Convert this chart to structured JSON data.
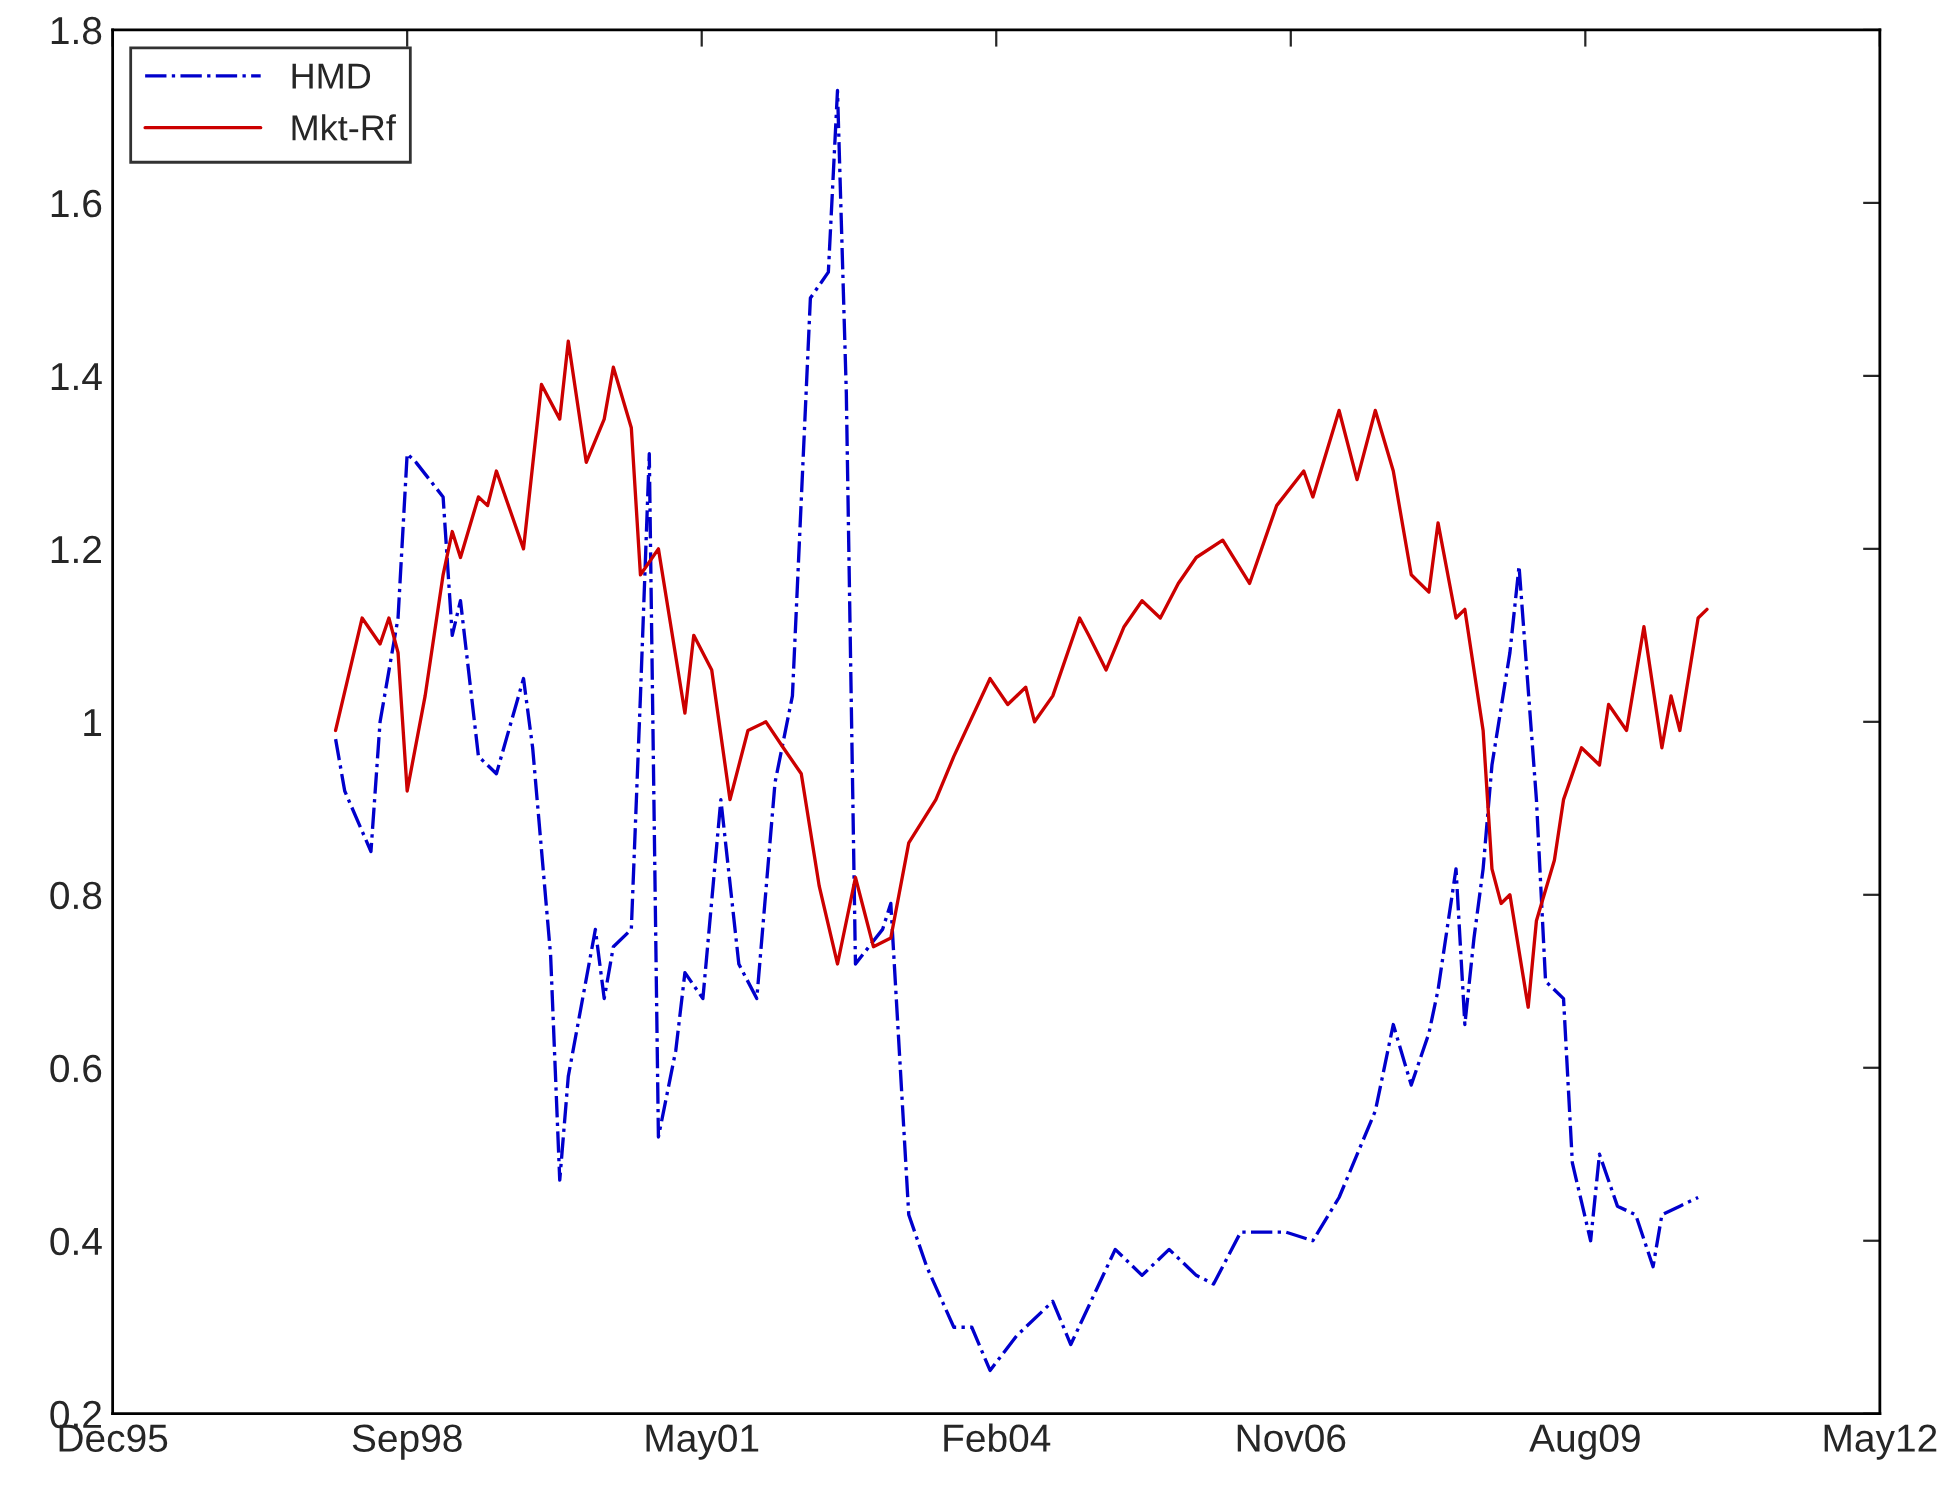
{
  "chart_data": {
    "type": "line",
    "xlim": [
      "1995-12-06",
      "2012-05-10"
    ],
    "xticks": [
      {
        "value": "1995-12-06",
        "label": "Dec95"
      },
      {
        "value": "1998-09-01",
        "label": "Sep98"
      },
      {
        "value": "2001-05-28",
        "label": "May01"
      },
      {
        "value": "2004-02-22",
        "label": "Feb04"
      },
      {
        "value": "2006-11-18",
        "label": "Nov06"
      },
      {
        "value": "2009-08-14",
        "label": "Aug09"
      },
      {
        "value": "2012-05-10",
        "label": "May12"
      }
    ],
    "ylim": [
      0.2,
      1.8
    ],
    "yticks": [
      0.2,
      0.4,
      0.6,
      0.8,
      1,
      1.2,
      1.4,
      1.6,
      1.8
    ],
    "grid": false,
    "legend": "top left",
    "series": [
      {
        "name": "HMD",
        "color": "#0000cc",
        "line_style": "dashdot",
        "x": [
          "1998-01",
          "1998-02",
          "1998-05",
          "1998-06",
          "1998-08",
          "1998-09",
          "1998-10",
          "1999-01",
          "1999-02",
          "1999-03",
          "1999-05",
          "1999-07",
          "1999-10",
          "1999-11",
          "2000-01",
          "2000-02",
          "2000-03",
          "2000-06",
          "2000-07",
          "2000-08",
          "2000-10",
          "2000-11",
          "2000-12",
          "2001-01",
          "2001-03",
          "2001-04",
          "2001-06",
          "2001-08",
          "2001-10",
          "2001-12",
          "2002-02",
          "2002-04",
          "2002-06",
          "2002-08",
          "2002-09",
          "2002-10",
          "2002-11",
          "2003-02",
          "2003-03",
          "2003-05",
          "2003-07",
          "2003-10",
          "2003-12",
          "2004-02",
          "2004-05",
          "2004-09",
          "2004-11",
          "2005-04",
          "2005-07",
          "2005-10",
          "2006-01",
          "2006-03",
          "2006-06",
          "2006-11",
          "2007-02",
          "2007-05",
          "2007-09",
          "2007-11",
          "2008-01",
          "2008-03",
          "2008-04",
          "2008-06",
          "2008-07",
          "2008-08",
          "2008-09",
          "2008-10",
          "2008-12",
          "2009-01",
          "2009-03",
          "2009-04",
          "2009-06",
          "2009-07",
          "2009-09",
          "2009-10",
          "2009-12",
          "2010-02",
          "2010-04",
          "2010-05",
          "2010-07",
          "2010-09"
        ],
        "values": [
          0.98,
          0.92,
          0.85,
          1.0,
          1.12,
          1.31,
          1.3,
          1.26,
          1.1,
          1.14,
          0.96,
          0.94,
          1.05,
          0.97,
          0.73,
          0.47,
          0.59,
          0.76,
          0.68,
          0.74,
          0.76,
          1.03,
          1.31,
          0.52,
          0.62,
          0.71,
          0.68,
          0.91,
          0.72,
          0.68,
          0.93,
          1.03,
          1.49,
          1.52,
          1.73,
          1.38,
          0.72,
          0.76,
          0.79,
          0.43,
          0.37,
          0.3,
          0.3,
          0.25,
          0.29,
          0.33,
          0.28,
          0.39,
          0.36,
          0.39,
          0.36,
          0.35,
          0.41,
          0.41,
          0.4,
          0.45,
          0.55,
          0.65,
          0.58,
          0.64,
          0.69,
          0.83,
          0.65,
          0.75,
          0.83,
          0.95,
          1.08,
          1.18,
          0.91,
          0.7,
          0.68,
          0.49,
          0.4,
          0.5,
          0.44,
          0.43,
          0.37,
          0.43,
          0.44,
          0.45
        ]
      },
      {
        "name": "Mkt-Rf",
        "color": "#cc0000",
        "line_style": "solid",
        "x": [
          "1998-01",
          "1998-04",
          "1998-06",
          "1998-07",
          "1998-08",
          "1998-09",
          "1998-11",
          "1999-01",
          "1999-02",
          "1999-03",
          "1999-05",
          "1999-06",
          "1999-07",
          "1999-10",
          "1999-12",
          "2000-02",
          "2000-03",
          "2000-05",
          "2000-07",
          "2000-08",
          "2000-10",
          "2000-11",
          "2001-01",
          "2001-04",
          "2001-05",
          "2001-07",
          "2001-09",
          "2001-11",
          "2002-01",
          "2002-03",
          "2002-05",
          "2002-07",
          "2002-09",
          "2002-11",
          "2003-01",
          "2003-03",
          "2003-05",
          "2003-08",
          "2003-10",
          "2004-02",
          "2004-04",
          "2004-06",
          "2004-07",
          "2004-09",
          "2004-12",
          "2005-01",
          "2005-03",
          "2005-05",
          "2005-07",
          "2005-09",
          "2005-11",
          "2006-01",
          "2006-04",
          "2006-07",
          "2006-10",
          "2007-01",
          "2007-02",
          "2007-05",
          "2007-07",
          "2007-09",
          "2007-11",
          "2008-01",
          "2008-03",
          "2008-04",
          "2008-06",
          "2008-07",
          "2008-09",
          "2008-10",
          "2008-11",
          "2008-12",
          "2009-02",
          "2009-03",
          "2009-05",
          "2009-06",
          "2009-08",
          "2009-10",
          "2009-11",
          "2010-01",
          "2010-03",
          "2010-05",
          "2010-06",
          "2010-07",
          "2010-09",
          "2010-10"
        ],
        "values": [
          0.99,
          1.12,
          1.09,
          1.12,
          1.08,
          0.92,
          1.03,
          1.17,
          1.22,
          1.19,
          1.26,
          1.25,
          1.29,
          1.2,
          1.39,
          1.35,
          1.44,
          1.3,
          1.35,
          1.41,
          1.34,
          1.17,
          1.2,
          1.01,
          1.1,
          1.06,
          0.91,
          0.99,
          1.0,
          0.97,
          0.94,
          0.81,
          0.72,
          0.82,
          0.74,
          0.75,
          0.86,
          0.91,
          0.96,
          1.05,
          1.02,
          1.04,
          1.0,
          1.03,
          1.12,
          1.1,
          1.06,
          1.11,
          1.14,
          1.12,
          1.16,
          1.19,
          1.21,
          1.16,
          1.25,
          1.29,
          1.26,
          1.36,
          1.28,
          1.36,
          1.29,
          1.17,
          1.15,
          1.23,
          1.12,
          1.13,
          0.99,
          0.83,
          0.79,
          0.8,
          0.67,
          0.77,
          0.84,
          0.91,
          0.97,
          0.95,
          1.02,
          0.99,
          1.11,
          0.97,
          1.03,
          0.99,
          1.12,
          1.13
        ]
      }
    ]
  }
}
